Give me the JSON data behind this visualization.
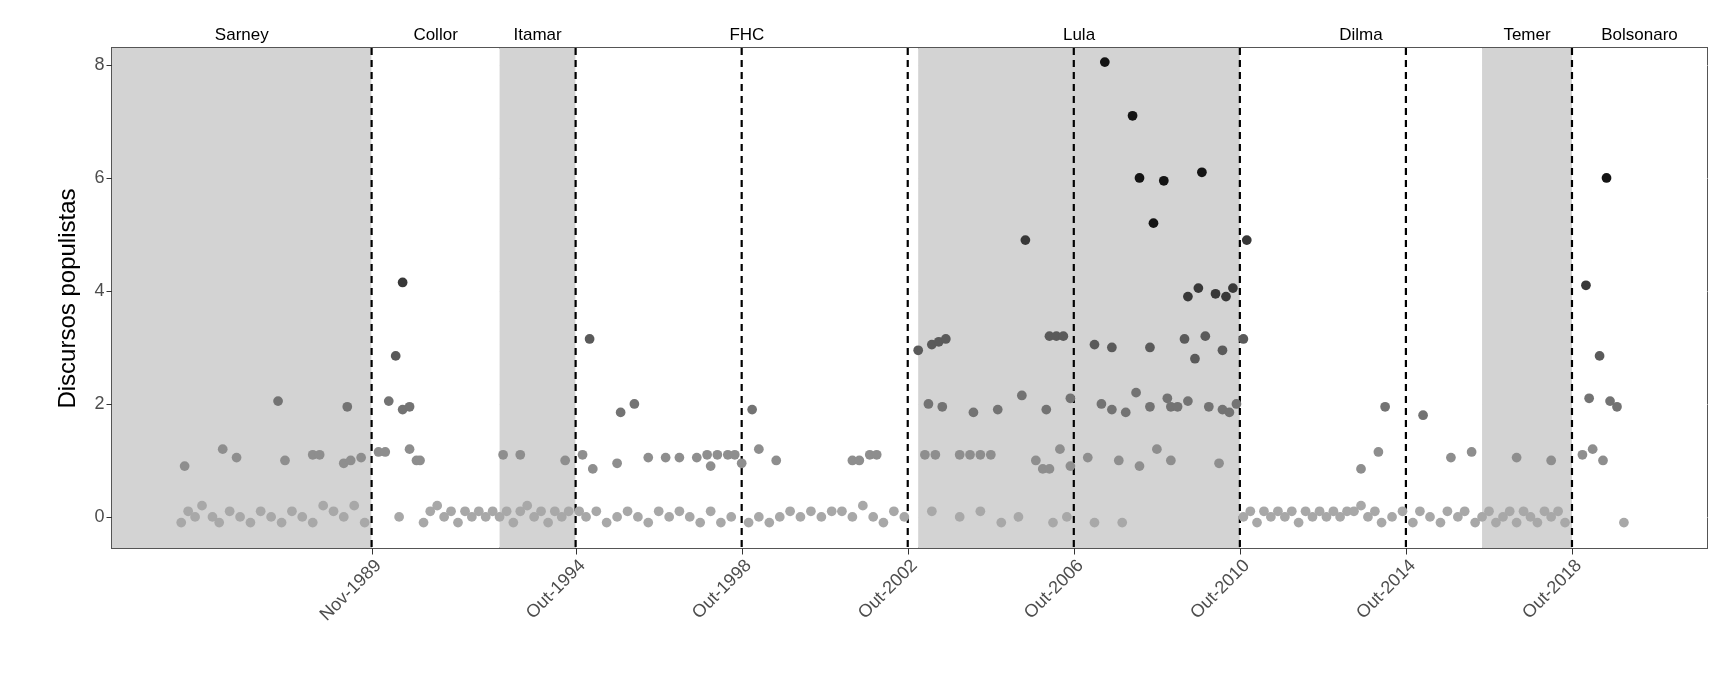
{
  "chart_data": {
    "type": "scatter",
    "ylabel": "Discursos populistas",
    "xlim": [
      "1983-08",
      "2022-01"
    ],
    "ylim": [
      -0.55,
      8.3
    ],
    "yticks": [
      0,
      2,
      4,
      6,
      8
    ],
    "xticks": [
      {
        "value": "1989-11",
        "label": "Nov-1989"
      },
      {
        "value": "1994-10",
        "label": "Out-1994"
      },
      {
        "value": "1998-10",
        "label": "Out-1998"
      },
      {
        "value": "2002-10",
        "label": "Out-2002"
      },
      {
        "value": "2006-10",
        "label": "Out-2006"
      },
      {
        "value": "2010-10",
        "label": "Out-2010"
      },
      {
        "value": "2014-10",
        "label": "Out-2014"
      },
      {
        "value": "2018-10",
        "label": "Out-2018"
      }
    ],
    "grid": "y",
    "legend": false,
    "marker": "circle",
    "bands": [
      {
        "axis": "x",
        "from": "1983-08",
        "to": "1989-11",
        "label": "Sarney",
        "color": "#d3d3d3"
      },
      {
        "axis": "x",
        "from": "1989-11",
        "to": "1992-12",
        "label": "Collor",
        "color": "#ffffff"
      },
      {
        "axis": "x",
        "from": "1992-12",
        "to": "1994-10",
        "label": "Itamar",
        "color": "#d3d3d3"
      },
      {
        "axis": "x",
        "from": "1994-10",
        "to": "2003-01",
        "label": "FHC",
        "color": "#ffffff"
      },
      {
        "axis": "x",
        "from": "2003-01",
        "to": "2010-10",
        "label": "Lula",
        "color": "#d3d3d3"
      },
      {
        "axis": "x",
        "from": "2010-10",
        "to": "2016-08",
        "label": "Dilma",
        "color": "#ffffff"
      },
      {
        "axis": "x",
        "from": "2016-08",
        "to": "2018-10",
        "label": "Temer",
        "color": "#d3d3d3"
      },
      {
        "axis": "x",
        "from": "2018-10",
        "to": "2022-01",
        "label": "Bolsonaro",
        "color": "#ffffff"
      }
    ],
    "ref_lines": [
      {
        "axis": "x",
        "value": "1989-11",
        "line_style": "dashed"
      },
      {
        "axis": "x",
        "value": "1994-10",
        "line_style": "dashed"
      },
      {
        "axis": "x",
        "value": "1998-10",
        "line_style": "dashed"
      },
      {
        "axis": "x",
        "value": "2002-10",
        "line_style": "dashed"
      },
      {
        "axis": "x",
        "value": "2006-10",
        "line_style": "dashed"
      },
      {
        "axis": "x",
        "value": "2010-10",
        "line_style": "dashed"
      },
      {
        "axis": "x",
        "value": "2014-10",
        "line_style": "dashed"
      },
      {
        "axis": "x",
        "value": "2018-10",
        "line_style": "dashed"
      }
    ],
    "series": [
      {
        "color": "#a8a8a8",
        "x": [
          "1985-04",
          "1985-06",
          "1985-08",
          "1985-10",
          "1986-01",
          "1986-03",
          "1986-06",
          "1986-09",
          "1986-12",
          "1987-03",
          "1987-06",
          "1987-09",
          "1987-12",
          "1988-03",
          "1988-06",
          "1988-09",
          "1988-12",
          "1989-03",
          "1989-06",
          "1989-09",
          "1990-07",
          "1991-02",
          "1991-04",
          "1991-06",
          "1991-08",
          "1991-10",
          "1991-12",
          "1992-02",
          "1992-04",
          "1992-06",
          "1992-08",
          "1992-10",
          "1992-12",
          "1993-02",
          "1993-04",
          "1993-06",
          "1993-08",
          "1993-10",
          "1993-12",
          "1994-02",
          "1994-04",
          "1994-06",
          "1994-08",
          "1994-11",
          "1995-01",
          "1995-04",
          "1995-07",
          "1995-10",
          "1996-01",
          "1996-04",
          "1996-07",
          "1996-10",
          "1997-01",
          "1997-04",
          "1997-07",
          "1997-10",
          "1998-01",
          "1998-04",
          "1998-07",
          "1998-12",
          "1999-03",
          "1999-06",
          "1999-09",
          "1999-12",
          "2000-03",
          "2000-06",
          "2000-09",
          "2000-12",
          "2001-03",
          "2001-06",
          "2001-09",
          "2001-12",
          "2002-03",
          "2002-06",
          "2002-09",
          "2003-05",
          "2004-01",
          "2004-07",
          "2005-01",
          "2005-06",
          "2006-04",
          "2006-08",
          "2007-04",
          "2007-12",
          "2010-11",
          "2011-01",
          "2011-03",
          "2011-05",
          "2011-07",
          "2011-09",
          "2011-11",
          "2012-01",
          "2012-03",
          "2012-05",
          "2012-07",
          "2012-09",
          "2012-11",
          "2013-01",
          "2013-03",
          "2013-05",
          "2013-07",
          "2013-09",
          "2013-11",
          "2014-01",
          "2014-03",
          "2014-06",
          "2014-09",
          "2014-12",
          "2015-02",
          "2015-05",
          "2015-08",
          "2015-10",
          "2016-01",
          "2016-03",
          "2016-06",
          "2016-08",
          "2016-10",
          "2016-12",
          "2017-02",
          "2017-04",
          "2017-06",
          "2017-08",
          "2017-10",
          "2017-12",
          "2018-02",
          "2018-04",
          "2018-06",
          "2018-08",
          "2020-01"
        ],
        "values": [
          -0.1,
          0.1,
          0,
          0.2,
          0,
          -0.1,
          0.1,
          0,
          -0.1,
          0.1,
          0,
          -0.1,
          0.1,
          0,
          -0.1,
          0.2,
          0.1,
          0,
          0.2,
          -0.1,
          0,
          -0.1,
          0.1,
          0.2,
          0,
          0.1,
          -0.1,
          0.1,
          0,
          0.1,
          0,
          0.1,
          0,
          0.1,
          -0.1,
          0.1,
          0.2,
          0,
          0.1,
          -0.1,
          0.1,
          0,
          0.1,
          0.1,
          0,
          0.1,
          -0.1,
          0,
          0.1,
          0,
          -0.1,
          0.1,
          0,
          0.1,
          0,
          -0.1,
          0.1,
          -0.1,
          0,
          -0.1,
          0,
          -0.1,
          0,
          0.1,
          0,
          0.1,
          0,
          0.1,
          0.1,
          0,
          0.2,
          0,
          -0.1,
          0.1,
          0,
          0.1,
          0,
          0.1,
          -0.1,
          0,
          -0.1,
          0,
          -0.1,
          -0.1,
          0,
          0.1,
          -0.1,
          0.1,
          0,
          0.1,
          0,
          0.1,
          -0.1,
          0.1,
          0,
          0.1,
          0,
          0.1,
          0,
          0.1,
          0.1,
          0.2,
          0,
          0.1,
          -0.1,
          0,
          0.1,
          -0.1,
          0.1,
          0,
          -0.1,
          0.1,
          0,
          0.1,
          -0.1,
          0,
          0.1,
          -0.1,
          0,
          0.1,
          -0.1,
          0.1,
          0,
          -0.1,
          0.1,
          0,
          0.1,
          -0.1,
          -0.1
        ]
      },
      {
        "color": "#8e8e8e",
        "x": [
          "1985-05",
          "1986-04",
          "1986-08",
          "1987-10",
          "1988-06",
          "1988-08",
          "1989-03",
          "1989-05",
          "1989-08",
          "1990-01",
          "1990-03",
          "1990-10",
          "1990-12",
          "1991-01",
          "1993-01",
          "1993-06",
          "1994-07",
          "1994-12",
          "1995-03",
          "1995-10",
          "1996-07",
          "1996-12",
          "1997-04",
          "1997-09",
          "1997-12",
          "1998-01",
          "1998-03",
          "1998-06",
          "1998-08",
          "1998-10",
          "1999-03",
          "1999-08",
          "2001-06",
          "2001-08",
          "2001-11",
          "2002-01",
          "2003-03",
          "2003-06",
          "2004-01",
          "2004-04",
          "2004-07",
          "2004-10",
          "2005-11",
          "2006-01",
          "2006-03",
          "2006-06",
          "2006-09",
          "2007-02",
          "2007-11",
          "2008-05",
          "2008-10",
          "2009-02",
          "2010-04",
          "2013-09",
          "2014-02",
          "2015-11",
          "2016-05",
          "2017-06",
          "2018-04",
          "2019-01",
          "2019-04",
          "2019-07"
        ],
        "values": [
          0.9,
          1.2,
          1.05,
          1.0,
          1.1,
          1.1,
          0.95,
          1.0,
          1.05,
          1.15,
          1.15,
          1.2,
          1.0,
          1.0,
          1.1,
          1.1,
          1.0,
          1.1,
          0.85,
          0.95,
          1.05,
          1.05,
          1.05,
          1.05,
          1.1,
          0.9,
          1.1,
          1.1,
          1.1,
          0.95,
          1.2,
          1.0,
          1.0,
          1.0,
          1.1,
          1.1,
          1.1,
          1.1,
          1.1,
          1.1,
          1.1,
          1.1,
          1.0,
          0.85,
          0.85,
          1.2,
          0.9,
          1.05,
          1.0,
          0.9,
          1.2,
          1.0,
          0.95,
          0.85,
          1.15,
          1.05,
          1.15,
          1.05,
          1.0,
          1.1,
          1.2,
          1.0
        ]
      },
      {
        "color": "#737373",
        "x": [
          "1987-08",
          "1989-04",
          "1990-04",
          "1990-08",
          "1990-10",
          "1995-11",
          "1996-03",
          "1999-01",
          "2003-04",
          "2003-08",
          "2004-05",
          "2004-12",
          "2005-07",
          "2006-02",
          "2006-09",
          "2007-06",
          "2007-09",
          "2008-01",
          "2008-04",
          "2008-08",
          "2009-01",
          "2009-02",
          "2009-04",
          "2009-07",
          "2010-01",
          "2010-05",
          "2010-07",
          "2010-09",
          "2014-04",
          "2015-03",
          "2019-03",
          "2019-09",
          "2019-11"
        ],
        "values": [
          2.05,
          1.95,
          2.05,
          1.9,
          1.95,
          1.85,
          2.0,
          1.9,
          2.0,
          1.95,
          1.85,
          1.9,
          2.15,
          1.9,
          2.1,
          2.0,
          1.9,
          1.85,
          2.2,
          1.95,
          2.1,
          1.95,
          1.95,
          2.05,
          1.95,
          1.9,
          1.85,
          2.0,
          1.95,
          1.8,
          2.1,
          2.05,
          1.95
        ]
      },
      {
        "color": "#5a5a5a",
        "x": [
          "1990-06",
          "1995-02",
          "2003-01",
          "2003-05",
          "2003-07",
          "2003-09",
          "2006-03",
          "2006-05",
          "2006-07",
          "2007-04",
          "2007-09",
          "2008-08",
          "2009-06",
          "2009-09",
          "2009-12",
          "2010-05",
          "2010-11",
          "2019-06"
        ],
        "values": [
          2.85,
          3.15,
          2.95,
          3.05,
          3.1,
          3.15,
          3.2,
          3.2,
          3.2,
          3.05,
          3.0,
          3.0,
          3.15,
          2.8,
          3.2,
          2.95,
          3.15,
          2.85
        ]
      },
      {
        "color": "#383838",
        "x": [
          "1990-08",
          "2005-08",
          "2009-07",
          "2009-10",
          "2010-03",
          "2010-06",
          "2010-08",
          "2010-12",
          "2019-02"
        ],
        "values": [
          4.15,
          4.9,
          3.9,
          4.05,
          3.95,
          3.9,
          4.05,
          4.9,
          4.1
        ]
      },
      {
        "color": "#141414",
        "x": [
          "2007-07",
          "2008-03",
          "2008-05",
          "2008-09",
          "2008-12",
          "2009-11",
          "2019-08"
        ],
        "values": [
          8.05,
          7.1,
          6.0,
          5.2,
          5.95,
          6.1,
          6.0
        ]
      }
    ]
  }
}
